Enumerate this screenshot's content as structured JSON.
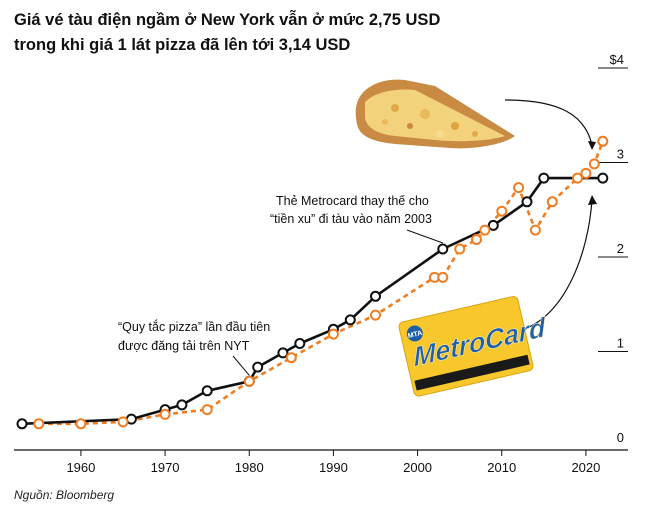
{
  "title_lines": [
    "Giá vé tàu điện ngầm ở New York vẫn ở mức 2,75 USD",
    "trong khi giá 1 lát pizza đã lên tới 3,14 USD"
  ],
  "source": "Nguồn: Bloomberg",
  "colors": {
    "subway": "#111111",
    "pizza": "#f07d22",
    "card_yellow": "#f7c72c",
    "card_blue": "#1f5fa8"
  },
  "icons": [
    "pizza-slice-image",
    "metrocard-image"
  ],
  "metrocard_text": {
    "brand": "MetroCard",
    "badge": "MTA"
  },
  "chart_data": {
    "type": "line",
    "title": "",
    "x_ticks": [
      1960,
      1970,
      1980,
      1990,
      2000,
      2010,
      2020
    ],
    "y_ticks": [
      {
        "value": 4,
        "label": "$4"
      },
      {
        "value": 3,
        "label": "3"
      },
      {
        "value": 2,
        "label": "2"
      },
      {
        "value": 1,
        "label": "1"
      },
      {
        "value": 0,
        "label": "0"
      }
    ],
    "xlim": [
      1953,
      2025
    ],
    "ylim": [
      0,
      4
    ],
    "grid": false,
    "legend": "none",
    "series": [
      {
        "name": "",
        "key": "subway",
        "style": "solid",
        "points": [
          [
            1953,
            0.15
          ],
          [
            1966,
            0.2
          ],
          [
            1970,
            0.3
          ],
          [
            1972,
            0.35
          ],
          [
            1975,
            0.5
          ],
          [
            1980,
            0.6
          ],
          [
            1981,
            0.75
          ],
          [
            1984,
            0.9
          ],
          [
            1986,
            1.0
          ],
          [
            1990,
            1.15
          ],
          [
            1992,
            1.25
          ],
          [
            1995,
            1.5
          ],
          [
            2003,
            2.0
          ],
          [
            2009,
            2.25
          ],
          [
            2013,
            2.5
          ],
          [
            2015,
            2.75
          ],
          [
            2022,
            2.75
          ]
        ]
      },
      {
        "name": "",
        "key": "pizza",
        "style": "dashed",
        "points": [
          [
            1955,
            0.15
          ],
          [
            1960,
            0.15
          ],
          [
            1965,
            0.17
          ],
          [
            1970,
            0.25
          ],
          [
            1975,
            0.3
          ],
          [
            1980,
            0.6
          ],
          [
            1985,
            0.85
          ],
          [
            1990,
            1.1
          ],
          [
            1995,
            1.3
          ],
          [
            2002,
            1.7
          ],
          [
            2003,
            1.7
          ],
          [
            2005,
            2.0
          ],
          [
            2007,
            2.1
          ],
          [
            2008,
            2.2
          ],
          [
            2010,
            2.4
          ],
          [
            2012,
            2.65
          ],
          [
            2014,
            2.2
          ],
          [
            2016,
            2.5
          ],
          [
            2019,
            2.75
          ],
          [
            2020,
            2.8
          ],
          [
            2021,
            2.9
          ],
          [
            2022,
            3.14
          ]
        ]
      }
    ],
    "annotations": [
      {
        "target_year": 2003,
        "lines": [
          "Thẻ Metrocard thay thế cho",
          "“tiền xu” đi tàu vào năm 2003"
        ]
      },
      {
        "target_year": 1980,
        "lines": [
          "“Quy tắc pizza” lần đầu tiên",
          "được đăng tải trên NYT"
        ]
      }
    ]
  }
}
